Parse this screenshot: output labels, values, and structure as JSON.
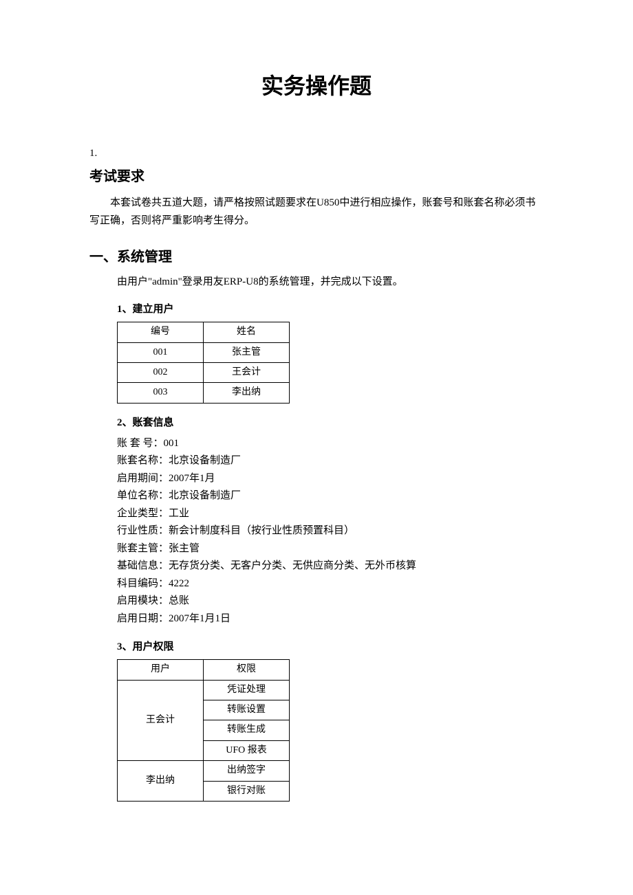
{
  "title": "实务操作题",
  "question_number": "1.",
  "exam_req": {
    "heading": "考试要求",
    "text": "本套试卷共五道大题，请严格按照试题要求在U850中进行相应操作，账套号和账套名称必须书写正确，否则将严重影响考生得分。"
  },
  "section1": {
    "heading": "一、系统管理",
    "intro": "由用户\"admin\"登录用友ERP-U8的系统管理，并完成以下设置。",
    "sub1": {
      "heading": "1、建立用户",
      "table": {
        "headers": [
          "编号",
          "姓名"
        ],
        "rows": [
          [
            "001",
            "张主管"
          ],
          [
            "002",
            "王会计"
          ],
          [
            "003",
            "李出纳"
          ]
        ]
      }
    },
    "sub2": {
      "heading": "2、账套信息",
      "items": [
        "账 套 号：001",
        "账套名称：北京设备制造厂",
        "启用期间：2007年1月",
        "单位名称：北京设备制造厂",
        "企业类型：工业",
        "行业性质：新会计制度科目（按行业性质预置科目）",
        "账套主管：张主管",
        "基础信息：无存货分类、无客户分类、无供应商分类、无外币核算",
        "科目编码：4222",
        "启用模块：总账",
        "启用日期：2007年1月1日"
      ]
    },
    "sub3": {
      "heading": "3、用户权限",
      "table": {
        "headers": [
          "用户",
          "权限"
        ],
        "groups": [
          {
            "user": "王会计",
            "perms": [
              "凭证处理",
              "转账设置",
              "转账生成",
              "UFO 报表"
            ]
          },
          {
            "user": "李出纳",
            "perms": [
              "出纳签字",
              "银行对账"
            ]
          }
        ]
      }
    }
  }
}
